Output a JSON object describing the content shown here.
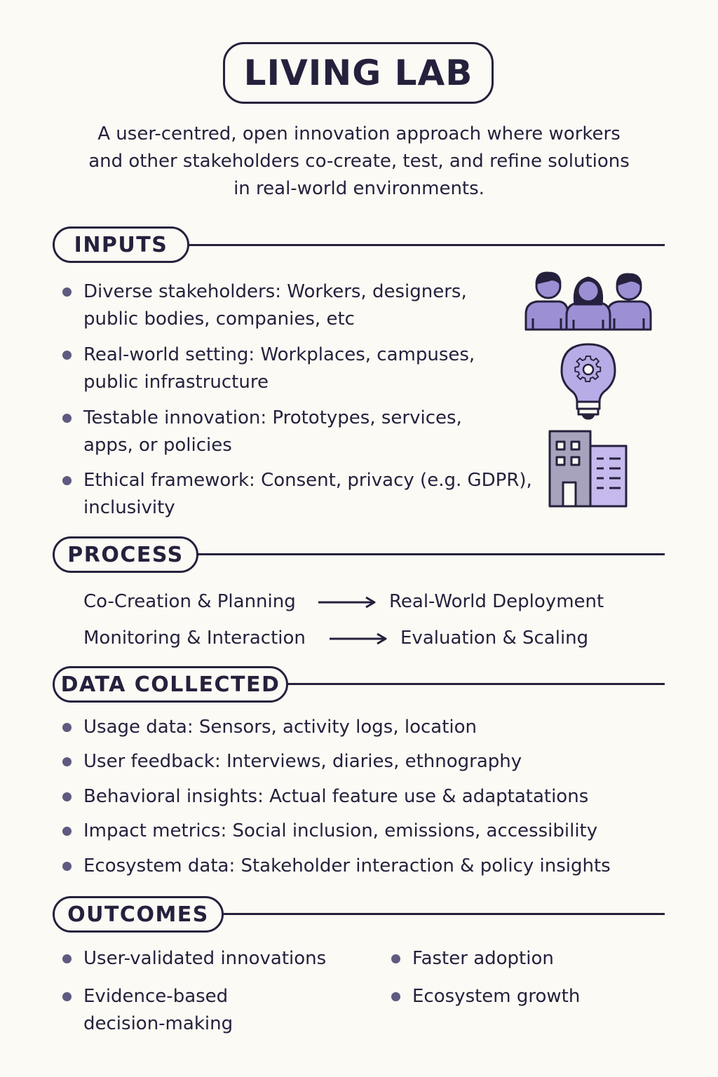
{
  "header": {
    "title": "LIVING LAB",
    "intro_lines": [
      "A user-centred, open innovation approach where workers",
      "and other stakeholders co-create, test, and refine solutions",
      "in real-world environments."
    ]
  },
  "sections": {
    "inputs": {
      "label": "INPUTS",
      "items": [
        {
          "line1": "Diverse stakeholders: Workers, designers,",
          "line2": "public bodies, companies, etc"
        },
        {
          "line1": "Real-world setting: Workplaces, campuses,",
          "line2": "public infrastructure"
        },
        {
          "line1": "Testable innovation: Prototypes, services,",
          "line2": "apps, or policies"
        },
        {
          "line1": "Ethical framework: Consent, privacy (e.g. GDPR),",
          "line2": "inclusivity"
        }
      ],
      "icons": [
        "people-group-icon",
        "lightbulb-gear-icon",
        "building-icon"
      ]
    },
    "process": {
      "label": "PROCESS",
      "rows": [
        {
          "from": "Co-Creation & Planning",
          "to": "Real-World Deployment"
        },
        {
          "from": "Monitoring & Interaction",
          "to": "Evaluation & Scaling"
        }
      ]
    },
    "data_collected": {
      "label": "DATA COLLECTED",
      "items": [
        "Usage data: Sensors, activity logs, location",
        "User feedback: Interviews, diaries, ethnography",
        "Behavioral insights: Actual feature use & adaptatations",
        "Impact metrics: Social inclusion, emissions, accessibility",
        "Ecosystem data: Stakeholder interaction & policy insights"
      ]
    },
    "outcomes": {
      "label": "OUTCOMES",
      "left": [
        {
          "line1": "User-validated innovations",
          "line2": ""
        },
        {
          "line1": "Evidence-based",
          "line2": "decision-making"
        }
      ],
      "right": [
        "Faster adoption",
        "Ecosystem growth"
      ]
    }
  },
  "colors": {
    "ink": "#25213d",
    "accent": "#9c8fd4",
    "bullet": "#5f5a7f",
    "background": "#fcfaf4"
  }
}
